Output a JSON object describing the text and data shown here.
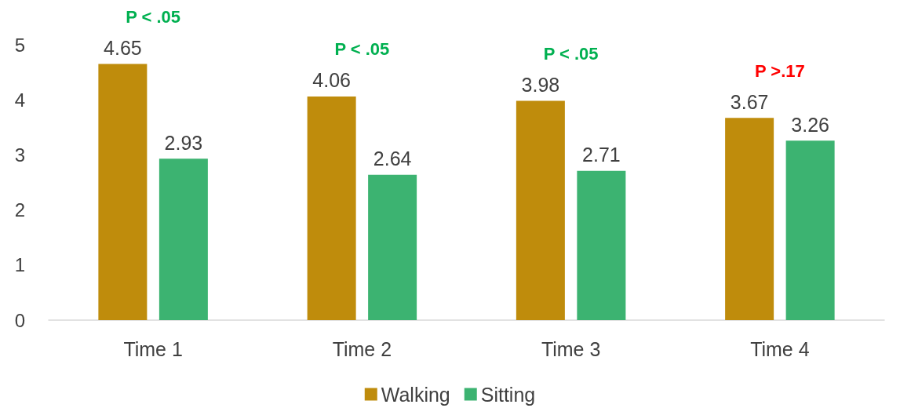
{
  "chart_data": {
    "type": "bar",
    "categories": [
      "Time 1",
      "Time 2",
      "Time 3",
      "Time 4"
    ],
    "series": [
      {
        "name": "Walking",
        "color": "#bf8c0c",
        "values": [
          4.65,
          4.06,
          3.98,
          3.67
        ]
      },
      {
        "name": "Sitting",
        "color": "#3cb371",
        "values": [
          2.93,
          2.64,
          2.71,
          3.26
        ]
      }
    ],
    "ylim": [
      0,
      5
    ],
    "yticks": [
      0,
      1,
      2,
      3,
      4,
      5
    ],
    "grid": false,
    "legend": "bottom",
    "data_labels": true,
    "annotations": [
      "P < .05",
      "P < .05",
      "P < .05",
      "P >.17"
    ]
  }
}
